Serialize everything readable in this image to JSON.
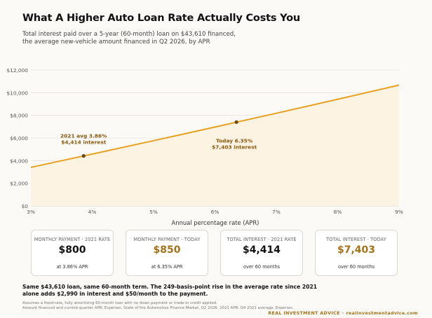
{
  "header": {
    "title": "What A Higher Auto Loan Rate Actually Costs You",
    "subtitle_line1": "Total interest paid over a 5-year (60-month) loan on $43,610 financed,",
    "subtitle_line2": "the average new-vehicle amount financed in Q2 2026, by APR"
  },
  "chart_data": {
    "type": "area",
    "xlabel": "Annual percentage rate (APR)",
    "ylabel": "",
    "xlim": [
      3,
      9
    ],
    "ylim": [
      0,
      12000
    ],
    "x_ticks": [
      3,
      4,
      5,
      6,
      7,
      8,
      9
    ],
    "x_tick_labels": [
      "3%",
      "4%",
      "5%",
      "6%",
      "7%",
      "8%",
      "9%"
    ],
    "y_ticks": [
      0,
      2000,
      4000,
      6000,
      8000,
      10000,
      12000
    ],
    "y_tick_labels": [
      "$0",
      "$2,000",
      "$4,000",
      "$6,000",
      "$8,000",
      "$10,000",
      "$12,000"
    ],
    "grid": true,
    "series": [
      {
        "x": [
          3,
          4,
          5,
          6,
          7,
          8,
          9
        ],
        "y": [
          3406,
          4577,
          5763,
          6965,
          8183,
          9418,
          10669
        ],
        "color": "#e8a020"
      }
    ],
    "annotations": [
      {
        "x": 3.86,
        "y": 4414,
        "line1": "2021 avg  3.86%",
        "line2": "$4,414 interest",
        "color": "#8a5a10"
      },
      {
        "x": 6.35,
        "y": 7403,
        "line1": "Today  6.35%",
        "line2": "$7,403 interest",
        "color": "#8a5a10"
      }
    ]
  },
  "cards": [
    {
      "label": "MONTHLY PAYMENT · 2021 RATE",
      "value": "$800",
      "sub": "at 3.86% APR",
      "highlight": false
    },
    {
      "label": "MONTHLY PAYMENT · TODAY",
      "value": "$850",
      "sub": "at 6.35% APR",
      "highlight": true
    },
    {
      "label": "TOTAL INTEREST · 2021 RATE",
      "value": "$4,414",
      "sub": "over 60 months",
      "highlight": false
    },
    {
      "label": "TOTAL INTEREST · TODAY",
      "value": "$7,403",
      "sub": "over 60 months",
      "highlight": true
    }
  ],
  "takeaway": {
    "line1": "Same $43,610 loan, same 60-month term. The 249-basis-point rise in the average rate since 2021",
    "line2": "alone adds $2,990 in interest and $50/month to the payment."
  },
  "footnote": {
    "line1": "Assumes a fixed-rate, fully amortizing 60-month loan with no down payment or trade-in credit applied.",
    "line2": "Amount financed and current-quarter APR: Experian, State of the Automotive Finance Market, Q2 2026. 2021 APR: Q4 2021 average, Experian."
  },
  "brand": {
    "name": "REAL INVESTMENT ADVICE",
    "separator": "·",
    "url": "realinvestmentadvice.com"
  },
  "colors": {
    "accent": "#e8a020",
    "accent_dark": "#a3721a",
    "fill": "#fdf3e3"
  }
}
